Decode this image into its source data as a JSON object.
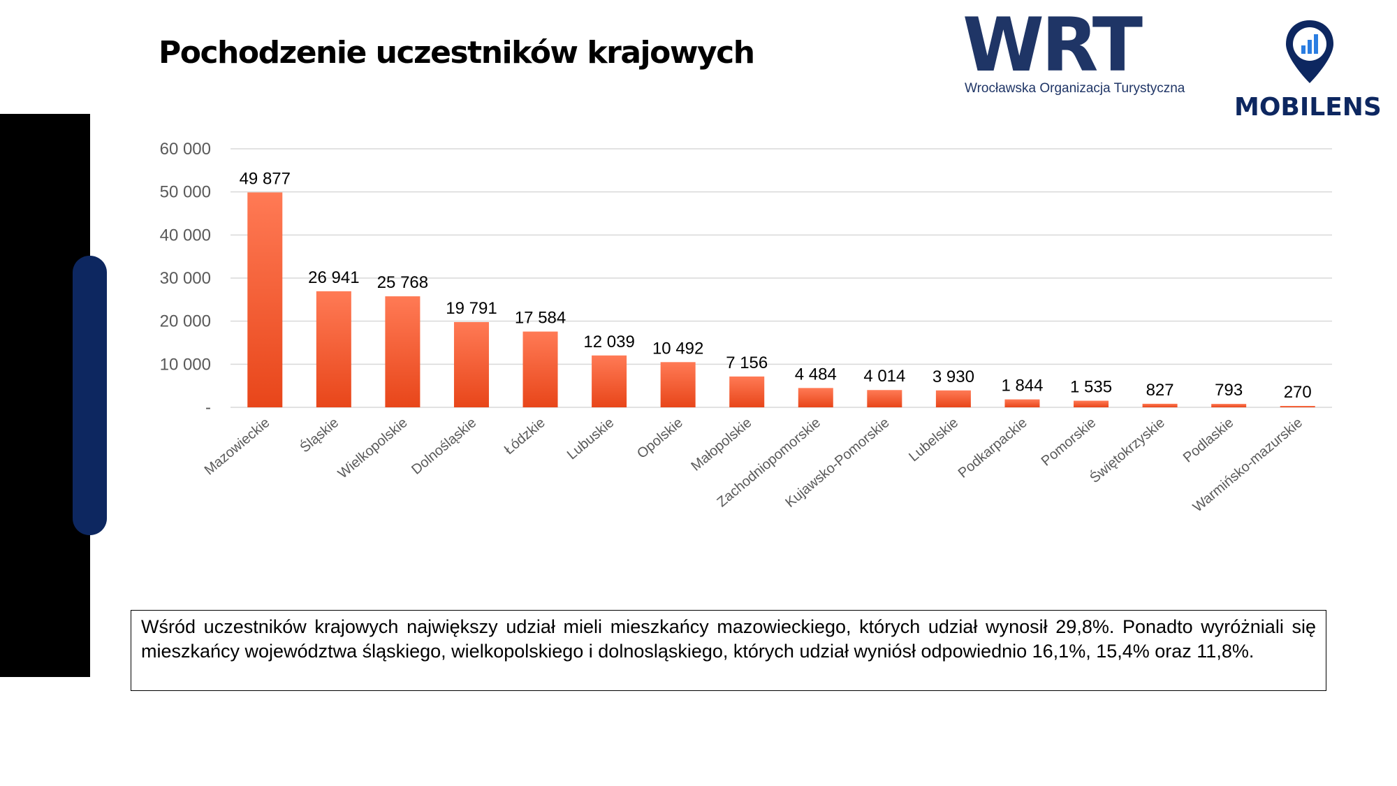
{
  "page": {
    "title": "Pochodzenie uczestników krajowych",
    "summary": "Wśród uczestników krajowych największy udział mieli mieszkańcy mazowieckiego, których udział wynosił 29,8%. Ponadto wyróżniali się mieszkańcy województwa śląskiego, wielkopolskiego i dolnosląskiego, których udział wyniósł odpowiednio 16,1%, 15,4% oraz 11,8%."
  },
  "logos": {
    "wrt": {
      "letters": "WRT",
      "tagline": "Wrocławska Organizacja Turystyczna",
      "color": "#1f3566"
    },
    "mobilens": {
      "name": "MOBILENS",
      "icon": "map-pin-chart-icon",
      "color": "#0d2760",
      "accent": "#2a7de1"
    }
  },
  "colors": {
    "bar_top": "#ff7a55",
    "bar_bottom": "#e8461a",
    "grid": "#d9d9d9",
    "accent_pill": "#0d2760"
  },
  "chart_data": {
    "type": "bar",
    "title": "",
    "xlabel": "",
    "ylabel": "",
    "ylim": [
      0,
      60000
    ],
    "y_ticks": [
      0,
      10000,
      20000,
      30000,
      40000,
      50000,
      60000
    ],
    "y_tick_labels": [
      "-",
      "10 000",
      "20 000",
      "30 000",
      "40 000",
      "50 000",
      "60 000"
    ],
    "grid": true,
    "legend": "none",
    "categories": [
      "Mazowieckie",
      "Śląskie",
      "Wielkopolskie",
      "Dolnośląskie",
      "Łódzkie",
      "Lubuskie",
      "Opolskie",
      "Małopolskie",
      "Zachodniopomorskie",
      "Kujawsko-Pomorskie",
      "Lubelskie",
      "Podkarpackie",
      "Pomorskie",
      "Świętokrzyskie",
      "Podlaskie",
      "Warmińsko-mazurskie"
    ],
    "values": [
      49877,
      26941,
      25768,
      19791,
      17584,
      12039,
      10492,
      7156,
      4484,
      4014,
      3930,
      1844,
      1535,
      827,
      793,
      270
    ],
    "value_labels": [
      "49 877",
      "26 941",
      "25 768",
      "19 791",
      "17 584",
      "12 039",
      "10 492",
      "7 156",
      "4 484",
      "4 014",
      "3 930",
      "1 844",
      "1 535",
      "827",
      "793",
      "270"
    ]
  }
}
